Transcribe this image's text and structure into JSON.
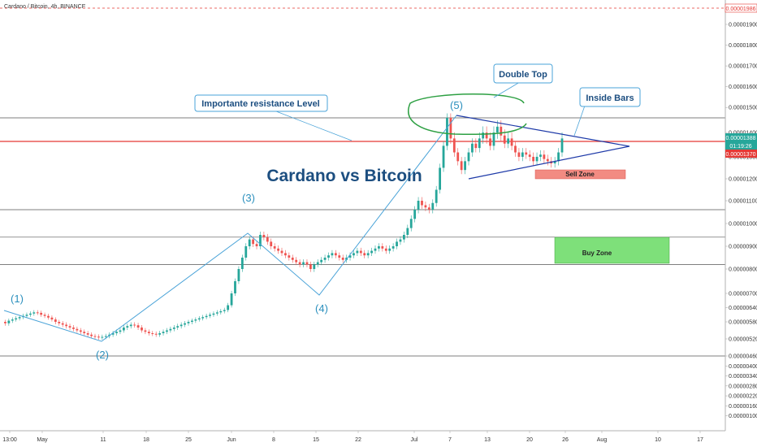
{
  "header": {
    "title": "Cardano / Bitcoin, 4h, BINANCE"
  },
  "chart_data": {
    "type": "candlestick",
    "title": "Cardano vs Bitcoin",
    "ylim": [
      1.2e-06,
      2e-05
    ],
    "y_ticks": [
      "0.00001986",
      "0.00001900",
      "0.00001800",
      "0.00001700",
      "0.00001600",
      "0.00001500",
      "0.00001400",
      "0.00001300",
      "0.00001200",
      "0.00001100",
      "0.00001000",
      "0.00000900",
      "0.00000800",
      "0.00000700",
      "0.00000640",
      "0.00000580",
      "0.00000520",
      "0.00000460",
      "0.00000400",
      "0.00000340",
      "0.00000280",
      "0.00000220",
      "0.00000160",
      "0.00000100"
    ],
    "x_ticks": [
      "13:00",
      "May",
      "11",
      "18",
      "25",
      "Jun",
      "8",
      "15",
      "22",
      "Jul",
      "7",
      "13",
      "20",
      "26",
      "Aug",
      "10",
      "17"
    ],
    "price_tags": {
      "last": "0.00001388",
      "countdown": "01:19:26",
      "level": "0.00001370",
      "top": "0.00001986"
    },
    "annotations": {
      "double_top": "Double Top",
      "inside_bars": "Inside Bars",
      "resistance": "Importante resistance Level",
      "sell_zone": "Sell Zone",
      "buy_zone": "Buy Zone"
    },
    "waves": [
      "(1)",
      "(2)",
      "(3)",
      "(4)",
      "(5)"
    ],
    "series": [
      {
        "values": [
          5.8e-06,
          5.75e-06,
          5.85e-06,
          5.9e-06,
          5.95e-06,
          6e-06,
          6.05e-06,
          6.1e-06,
          6.15e-06,
          6.2e-06,
          6.18e-06,
          6.1e-06,
          6.05e-06,
          5.98e-06,
          5.9e-06,
          5.8e-06,
          5.75e-06,
          5.7e-06,
          5.65e-06,
          5.6e-06,
          5.55e-06,
          5.5e-06,
          5.45e-06,
          5.4e-06,
          5.35e-06,
          5.3e-06,
          5.28e-06,
          5.25e-06,
          5.27e-06,
          5.3e-06,
          5.35e-06,
          5.4e-06,
          5.45e-06,
          5.5e-06,
          5.6e-06,
          5.65e-06,
          5.7e-06,
          5.68e-06,
          5.6e-06,
          5.5e-06,
          5.45e-06,
          5.4e-06,
          5.38e-06,
          5.35e-06,
          5.4e-06,
          5.45e-06,
          5.5e-06,
          5.55e-06,
          5.6e-06,
          5.65e-06,
          5.7e-06,
          5.75e-06,
          5.8e-06,
          5.85e-06,
          5.9e-06,
          5.95e-06,
          6e-06,
          6.05e-06,
          6.1e-06,
          6.15e-06,
          6.2e-06,
          6.25e-06,
          6.3e-06,
          6.5e-06,
          7e-06,
          7.5e-06,
          8e-06,
          8.5e-06,
          9e-06,
          9.3e-06,
          9.1e-06,
          9e-06,
          9.5e-06,
          9.4e-06,
          9.2e-06,
          9e-06,
          8.9e-06,
          8.8e-06,
          8.7e-06,
          8.6e-06,
          8.5e-06,
          8.4e-06,
          8.3e-06,
          8.2e-06,
          8.3e-06,
          8.2e-06,
          8e-06,
          8.2e-06,
          8.3e-06,
          8.4e-06,
          8.5e-06,
          8.6e-06,
          8.7e-06,
          8.6e-06,
          8.5e-06,
          8.4e-06,
          8.5e-06,
          8.6e-06,
          8.7e-06,
          8.8e-06,
          8.7e-06,
          8.6e-06,
          8.7e-06,
          8.8e-06,
          8.9e-06,
          9e-06,
          8.9e-06,
          8.8e-06,
          8.9e-06,
          9e-06,
          9.2e-06,
          9.3e-06,
          9.5e-06,
          9.8e-06,
          1.02e-05,
          1.06e-05,
          1.1e-05,
          1.08e-05,
          1.07e-05,
          1.06e-05,
          1.09e-05,
          1.15e-05,
          1.25e-05,
          1.35e-05,
          1.45e-05,
          1.38e-05,
          1.32e-05,
          1.28e-05,
          1.24e-05,
          1.28e-05,
          1.32e-05,
          1.36e-05,
          1.34e-05,
          1.38e-05,
          1.4e-05,
          1.38e-05,
          1.35e-05,
          1.4e-05,
          1.42e-05,
          1.39e-05,
          1.36e-05,
          1.38e-05,
          1.35e-05,
          1.32e-05,
          1.3e-05,
          1.32e-05,
          1.31e-05,
          1.3e-05,
          1.28e-05,
          1.3e-05,
          1.31e-05,
          1.29e-05,
          1.28e-05,
          1.27e-05,
          1.28e-05,
          1.32e-05,
          1.38e-05
        ]
      }
    ],
    "levels": [
      1.45e-05,
      1.37e-05,
      1.06e-05,
      9.4e-06,
      8.2e-06,
      4.6e-06
    ]
  },
  "colors": {
    "up": "#26a69a",
    "down": "#ef5350",
    "accent": "#2962ff",
    "resistance": "#e53935",
    "wave": "#4aa3d8",
    "triangle": "#1e3aa8",
    "ellipse": "#2ea043"
  }
}
